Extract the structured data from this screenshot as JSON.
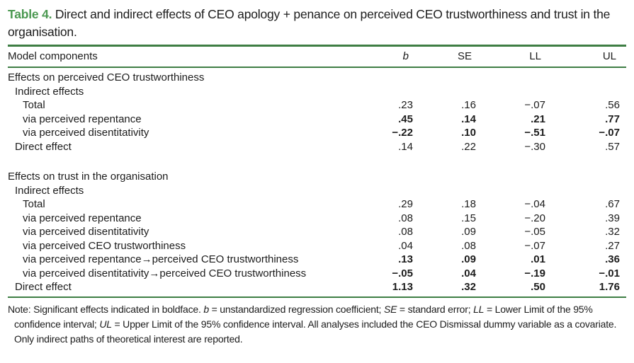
{
  "colors": {
    "title_green": "#4a9850",
    "rule_green": "#3e7e44",
    "text": "#1c1c1c"
  },
  "caption": {
    "label": "Table 4.",
    "text": " Direct and indirect effects of CEO apology + penance on perceived CEO trustworthiness and trust in the organisation."
  },
  "table": {
    "columns": {
      "label": "Model components",
      "b": "b",
      "se": "SE",
      "ll": "LL",
      "ul": "UL"
    },
    "sections": [
      {
        "header": "Effects on perceived CEO trustworthiness",
        "rows": [
          {
            "label": "Indirect effects",
            "indent": 1,
            "b": "",
            "se": "",
            "ll": "",
            "ul": "",
            "significant": false
          },
          {
            "label": "Total",
            "indent": 2,
            "b": ".23",
            "se": ".16",
            "ll": "−.07",
            "ul": ".56",
            "significant": false
          },
          {
            "label": "via perceived repentance",
            "indent": 2,
            "b": ".45",
            "se": ".14",
            "ll": ".21",
            "ul": ".77",
            "significant": true
          },
          {
            "label": "via perceived disentitativity",
            "indent": 2,
            "b": "−.22",
            "se": ".10",
            "ll": "−.51",
            "ul": "−.07",
            "significant": true
          },
          {
            "label": "Direct effect",
            "indent": 1,
            "b": ".14",
            "se": ".22",
            "ll": "−.30",
            "ul": ".57",
            "significant": false
          }
        ]
      },
      {
        "header": "Effects on trust in the organisation",
        "rows": [
          {
            "label": "Indirect effects",
            "indent": 1,
            "b": "",
            "se": "",
            "ll": "",
            "ul": "",
            "significant": false
          },
          {
            "label": "Total",
            "indent": 2,
            "b": ".29",
            "se": ".18",
            "ll": "−.04",
            "ul": ".67",
            "significant": false
          },
          {
            "label": "via perceived repentance",
            "indent": 2,
            "b": ".08",
            "se": ".15",
            "ll": "−.20",
            "ul": ".39",
            "significant": false
          },
          {
            "label": "via perceived disentitativity",
            "indent": 2,
            "b": ".08",
            "se": ".09",
            "ll": "−.05",
            "ul": ".32",
            "significant": false
          },
          {
            "label": "via perceived CEO trustworthiness",
            "indent": 2,
            "b": ".04",
            "se": ".08",
            "ll": "−.07",
            "ul": ".27",
            "significant": false
          },
          {
            "label": "via perceived repentance→perceived CEO trustworthiness",
            "indent": 2,
            "b": ".13",
            "se": ".09",
            "ll": ".01",
            "ul": ".36",
            "significant": true
          },
          {
            "label": "via perceived disentitativity→perceived CEO trustworthiness",
            "indent": 2,
            "b": "−.05",
            "se": ".04",
            "ll": "−.19",
            "ul": "−.01",
            "significant": true
          },
          {
            "label": "Direct effect",
            "indent": 1,
            "b": "1.13",
            "se": ".32",
            "ll": ".50",
            "ul": "1.76",
            "significant": true
          }
        ]
      }
    ]
  },
  "note": {
    "parts": [
      "Note: Significant effects indicated in boldface. ",
      "b",
      " = unstandardized regression coefficient; ",
      "SE",
      " = standard error; ",
      "LL",
      " = Lower Limit of the 95% confidence interval; ",
      "UL",
      " = Upper Limit of the 95% confidence interval. All analyses included the CEO Dismissal dummy variable as a covariate. Only indirect paths of theoretical interest are reported."
    ]
  }
}
